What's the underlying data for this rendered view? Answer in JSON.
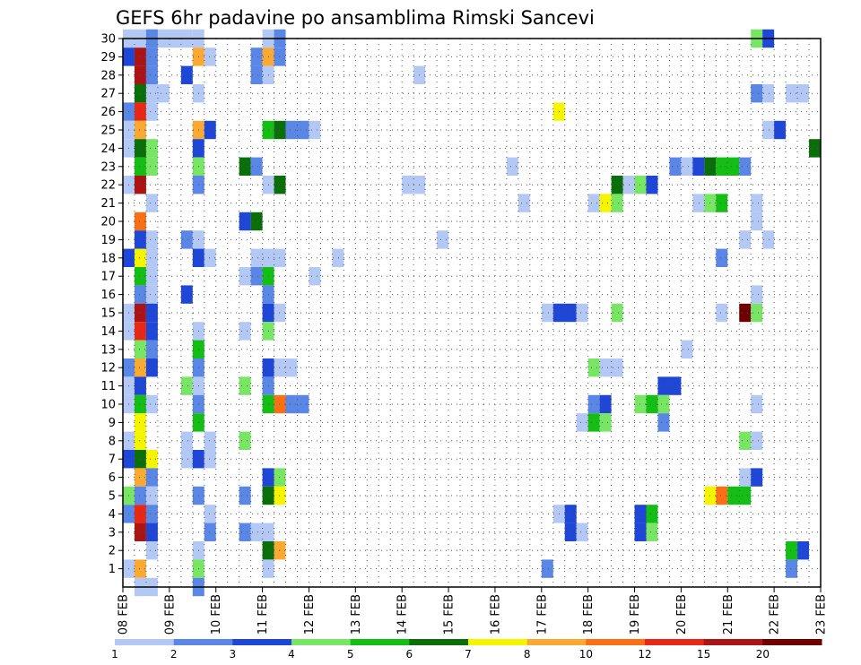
{
  "chart_data": {
    "type": "heatmap",
    "title": "GEFS 6hr padavine po ansamblima Rimski Sancevi",
    "xlabel": "",
    "ylabel": "",
    "x_dates": [
      "08 FEB",
      "09 FEB",
      "10 FEB",
      "11 FEB",
      "12 FEB",
      "13 FEB",
      "14 FEB",
      "15 FEB",
      "16 FEB",
      "17 FEB",
      "18 FEB",
      "19 FEB",
      "20 FEB",
      "21 FEB",
      "22 FEB",
      "23 FEB"
    ],
    "x_range": [
      0,
      15
    ],
    "y_members": [
      "1",
      "2",
      "3",
      "4",
      "5",
      "6",
      "7",
      "8",
      "9",
      "10",
      "11",
      "12",
      "13",
      "14",
      "15",
      "16",
      "17",
      "18",
      "19",
      "20",
      "21",
      "22",
      "23",
      "24",
      "25",
      "26",
      "27",
      "28",
      "29",
      "30"
    ],
    "y_range": [
      0,
      30
    ],
    "grid": true,
    "legend": {
      "placement": "bottom",
      "levels": [
        "1",
        "2",
        "3",
        "4",
        "5",
        "6",
        "7",
        "8",
        "10",
        "12",
        "15",
        "20"
      ],
      "colors": [
        "#b4c8f5",
        "#5a87e6",
        "#1e46d7",
        "#78e664",
        "#14be14",
        "#0a6e0a",
        "#f5f500",
        "#faaa32",
        "#fa6e14",
        "#e62814",
        "#aa1414",
        "#6e0000"
      ]
    },
    "cells": [
      [
        30,
        0.0,
        0,
        1
      ],
      [
        30,
        0.25,
        0,
        5
      ],
      [
        30,
        0.5,
        1,
        1
      ],
      [
        30,
        1.5,
        0,
        1
      ],
      [
        30,
        3.0,
        0,
        1
      ],
      [
        30,
        3.25,
        1,
        1
      ],
      [
        30,
        13.5,
        3,
        1
      ],
      [
        30,
        13.75,
        2,
        1
      ],
      [
        29,
        0.0,
        2,
        1
      ],
      [
        29,
        0.25,
        10,
        1
      ],
      [
        29,
        0.5,
        1,
        1
      ],
      [
        29,
        1.5,
        7,
        1
      ],
      [
        29,
        1.75,
        0,
        1
      ],
      [
        29,
        2.75,
        1,
        1
      ],
      [
        29,
        3.0,
        7,
        1
      ],
      [
        29,
        3.25,
        1,
        1
      ],
      [
        28,
        0.25,
        10,
        1
      ],
      [
        28,
        0.5,
        1,
        1
      ],
      [
        28,
        1.25,
        2,
        1
      ],
      [
        28,
        2.75,
        1,
        1
      ],
      [
        28,
        3.0,
        0,
        1
      ],
      [
        28,
        6.25,
        0,
        1
      ],
      [
        27,
        0.25,
        5,
        1
      ],
      [
        27,
        0.5,
        0,
        2
      ],
      [
        27,
        1.5,
        0,
        1
      ],
      [
        27,
        13.5,
        1,
        1
      ],
      [
        27,
        13.75,
        0,
        1
      ],
      [
        27,
        14.25,
        0,
        2
      ],
      [
        26,
        0.0,
        1,
        1
      ],
      [
        26,
        0.25,
        9,
        1
      ],
      [
        26,
        0.5,
        0,
        1
      ],
      [
        26,
        9.25,
        6,
        1
      ],
      [
        25,
        0.0,
        0,
        1
      ],
      [
        25,
        0.25,
        7,
        1
      ],
      [
        25,
        1.5,
        7,
        1
      ],
      [
        25,
        1.75,
        2,
        1
      ],
      [
        25,
        3.0,
        4,
        1
      ],
      [
        25,
        3.25,
        5,
        1
      ],
      [
        25,
        3.5,
        1,
        2
      ],
      [
        25,
        4.0,
        0,
        1
      ],
      [
        25,
        13.75,
        0,
        1
      ],
      [
        25,
        14.0,
        2,
        1
      ],
      [
        24,
        0.0,
        0,
        1
      ],
      [
        24,
        0.25,
        5,
        1
      ],
      [
        24,
        0.5,
        3,
        1
      ],
      [
        24,
        1.5,
        2,
        1
      ],
      [
        24,
        14.75,
        5,
        1
      ],
      [
        23,
        0.25,
        4,
        1
      ],
      [
        23,
        0.5,
        3,
        1
      ],
      [
        23,
        1.5,
        3,
        1
      ],
      [
        23,
        2.5,
        5,
        1
      ],
      [
        23,
        2.75,
        1,
        1
      ],
      [
        23,
        8.25,
        0,
        1
      ],
      [
        23,
        11.75,
        1,
        1
      ],
      [
        23,
        12.0,
        0,
        1
      ],
      [
        23,
        12.25,
        2,
        1
      ],
      [
        23,
        12.5,
        5,
        1
      ],
      [
        23,
        12.75,
        4,
        2
      ],
      [
        23,
        13.25,
        1,
        1
      ],
      [
        22,
        0.0,
        0,
        1
      ],
      [
        22,
        0.25,
        10,
        1
      ],
      [
        22,
        1.5,
        1,
        1
      ],
      [
        22,
        3.0,
        0,
        1
      ],
      [
        22,
        3.25,
        5,
        1
      ],
      [
        22,
        6.0,
        0,
        2
      ],
      [
        22,
        10.5,
        5,
        1
      ],
      [
        22,
        10.75,
        0,
        1
      ],
      [
        22,
        11.0,
        3,
        1
      ],
      [
        22,
        11.25,
        2,
        1
      ],
      [
        21,
        0.5,
        0,
        1
      ],
      [
        21,
        8.5,
        0,
        1
      ],
      [
        21,
        10.0,
        0,
        1
      ],
      [
        21,
        10.25,
        6,
        1
      ],
      [
        21,
        10.5,
        3,
        1
      ],
      [
        21,
        12.25,
        0,
        1
      ],
      [
        21,
        12.5,
        3,
        1
      ],
      [
        21,
        12.75,
        4,
        1
      ],
      [
        21,
        13.5,
        0,
        1
      ],
      [
        20,
        0.25,
        8,
        1
      ],
      [
        20,
        2.5,
        2,
        1
      ],
      [
        20,
        2.75,
        5,
        1
      ],
      [
        20,
        13.5,
        0,
        1
      ],
      [
        19,
        0.25,
        2,
        1
      ],
      [
        19,
        0.5,
        0,
        1
      ],
      [
        19,
        1.25,
        1,
        1
      ],
      [
        19,
        1.5,
        0,
        1
      ],
      [
        19,
        6.75,
        0,
        1
      ],
      [
        19,
        13.25,
        0,
        1
      ],
      [
        19,
        13.75,
        0,
        1
      ],
      [
        18,
        0.0,
        2,
        1
      ],
      [
        18,
        0.25,
        6,
        1
      ],
      [
        18,
        0.5,
        0,
        1
      ],
      [
        18,
        1.5,
        2,
        1
      ],
      [
        18,
        1.75,
        0,
        1
      ],
      [
        18,
        2.75,
        0,
        3
      ],
      [
        18,
        4.5,
        0,
        1
      ],
      [
        18,
        12.75,
        1,
        1
      ],
      [
        17,
        0.25,
        4,
        1
      ],
      [
        17,
        0.5,
        0,
        1
      ],
      [
        17,
        2.5,
        0,
        1
      ],
      [
        17,
        2.75,
        1,
        1
      ],
      [
        17,
        3.0,
        4,
        1
      ],
      [
        17,
        4.0,
        0,
        1
      ],
      [
        16,
        0.25,
        1,
        1
      ],
      [
        16,
        0.5,
        0,
        1
      ],
      [
        16,
        1.25,
        2,
        1
      ],
      [
        16,
        3.0,
        1,
        1
      ],
      [
        16,
        13.5,
        0,
        1
      ],
      [
        15,
        0.0,
        0,
        1
      ],
      [
        15,
        0.25,
        10,
        1
      ],
      [
        15,
        0.5,
        2,
        1
      ],
      [
        15,
        3.0,
        2,
        1
      ],
      [
        15,
        3.25,
        0,
        1
      ],
      [
        15,
        9.0,
        0,
        1
      ],
      [
        15,
        9.25,
        2,
        2
      ],
      [
        15,
        9.75,
        0,
        1
      ],
      [
        15,
        10.5,
        3,
        1
      ],
      [
        15,
        12.75,
        0,
        1
      ],
      [
        15,
        13.25,
        11,
        1
      ],
      [
        15,
        13.5,
        3,
        1
      ],
      [
        14,
        0.0,
        0,
        1
      ],
      [
        14,
        0.25,
        9,
        1
      ],
      [
        14,
        0.5,
        2,
        1
      ],
      [
        14,
        1.5,
        0,
        1
      ],
      [
        14,
        2.5,
        0,
        1
      ],
      [
        14,
        3.0,
        3,
        1
      ],
      [
        13,
        0.25,
        3,
        1
      ],
      [
        13,
        0.5,
        1,
        1
      ],
      [
        13,
        1.5,
        4,
        1
      ],
      [
        13,
        12.0,
        0,
        1
      ],
      [
        12,
        0.0,
        1,
        1
      ],
      [
        12,
        0.25,
        7,
        1
      ],
      [
        12,
        0.5,
        2,
        1
      ],
      [
        12,
        1.5,
        1,
        1
      ],
      [
        12,
        3.0,
        2,
        1
      ],
      [
        12,
        3.25,
        0,
        2
      ],
      [
        12,
        10.0,
        3,
        1
      ],
      [
        12,
        10.25,
        0,
        2
      ],
      [
        11,
        0.0,
        0,
        1
      ],
      [
        11,
        0.25,
        2,
        1
      ],
      [
        11,
        1.25,
        3,
        1
      ],
      [
        11,
        1.5,
        0,
        1
      ],
      [
        11,
        2.5,
        3,
        1
      ],
      [
        11,
        3.0,
        1,
        1
      ],
      [
        11,
        11.5,
        2,
        2
      ],
      [
        10,
        0.0,
        0,
        1
      ],
      [
        10,
        0.25,
        4,
        1
      ],
      [
        10,
        0.5,
        0,
        1
      ],
      [
        10,
        1.5,
        1,
        1
      ],
      [
        10,
        3.0,
        4,
        1
      ],
      [
        10,
        3.25,
        8,
        1
      ],
      [
        10,
        3.5,
        1,
        2
      ],
      [
        10,
        10.0,
        1,
        1
      ],
      [
        10,
        10.25,
        2,
        1
      ],
      [
        10,
        11.0,
        3,
        1
      ],
      [
        10,
        11.25,
        4,
        1
      ],
      [
        10,
        11.5,
        3,
        1
      ],
      [
        10,
        13.5,
        0,
        1
      ],
      [
        9,
        0.25,
        6,
        1
      ],
      [
        9,
        1.5,
        4,
        1
      ],
      [
        9,
        9.75,
        0,
        1
      ],
      [
        9,
        10.0,
        4,
        1
      ],
      [
        9,
        10.25,
        3,
        1
      ],
      [
        9,
        11.5,
        1,
        1
      ],
      [
        8,
        0.0,
        0,
        1
      ],
      [
        8,
        0.25,
        6,
        1
      ],
      [
        8,
        1.25,
        0,
        1
      ],
      [
        8,
        1.75,
        0,
        1
      ],
      [
        8,
        2.5,
        3,
        1
      ],
      [
        8,
        13.25,
        3,
        1
      ],
      [
        8,
        13.5,
        0,
        1
      ],
      [
        7,
        0.0,
        2,
        1
      ],
      [
        7,
        0.25,
        5,
        1
      ],
      [
        7,
        0.5,
        6,
        1
      ],
      [
        7,
        1.25,
        0,
        1
      ],
      [
        7,
        1.5,
        2,
        1
      ],
      [
        7,
        1.75,
        0,
        1
      ],
      [
        6,
        0.25,
        7,
        1
      ],
      [
        6,
        0.5,
        1,
        1
      ],
      [
        6,
        3.0,
        2,
        1
      ],
      [
        6,
        3.25,
        3,
        1
      ],
      [
        6,
        13.25,
        0,
        1
      ],
      [
        6,
        13.5,
        2,
        1
      ],
      [
        5,
        0.0,
        3,
        1
      ],
      [
        5,
        0.25,
        1,
        1
      ],
      [
        5,
        0.5,
        0,
        1
      ],
      [
        5,
        1.5,
        1,
        1
      ],
      [
        5,
        2.5,
        1,
        1
      ],
      [
        5,
        3.0,
        5,
        1
      ],
      [
        5,
        3.25,
        6,
        1
      ],
      [
        5,
        12.5,
        6,
        1
      ],
      [
        5,
        12.75,
        8,
        1
      ],
      [
        5,
        13.0,
        4,
        2
      ],
      [
        4,
        0.0,
        1,
        1
      ],
      [
        4,
        0.25,
        9,
        1
      ],
      [
        4,
        0.5,
        1,
        1
      ],
      [
        4,
        1.75,
        0,
        1
      ],
      [
        4,
        9.25,
        0,
        1
      ],
      [
        4,
        9.5,
        2,
        1
      ],
      [
        4,
        11.0,
        2,
        1
      ],
      [
        4,
        11.25,
        4,
        1
      ],
      [
        3,
        0.25,
        10,
        1
      ],
      [
        3,
        0.5,
        2,
        1
      ],
      [
        3,
        1.75,
        1,
        1
      ],
      [
        3,
        2.5,
        1,
        1
      ],
      [
        3,
        2.75,
        0,
        2
      ],
      [
        3,
        9.5,
        2,
        1
      ],
      [
        3,
        9.75,
        0,
        1
      ],
      [
        3,
        11.0,
        2,
        1
      ],
      [
        3,
        11.25,
        3,
        1
      ],
      [
        2,
        0.5,
        0,
        1
      ],
      [
        2,
        1.5,
        0,
        1
      ],
      [
        2,
        3.0,
        5,
        1
      ],
      [
        2,
        3.25,
        7,
        1
      ],
      [
        2,
        14.25,
        4,
        1
      ],
      [
        2,
        14.5,
        2,
        1
      ],
      [
        1,
        0.0,
        0,
        1
      ],
      [
        1,
        0.25,
        7,
        1
      ],
      [
        1,
        1.5,
        3,
        1
      ],
      [
        1,
        3.0,
        0,
        1
      ],
      [
        1,
        9.0,
        1,
        1
      ],
      [
        1,
        14.25,
        1,
        1
      ],
      [
        0,
        0.25,
        0,
        2
      ],
      [
        0,
        1.5,
        1,
        1
      ]
    ]
  }
}
